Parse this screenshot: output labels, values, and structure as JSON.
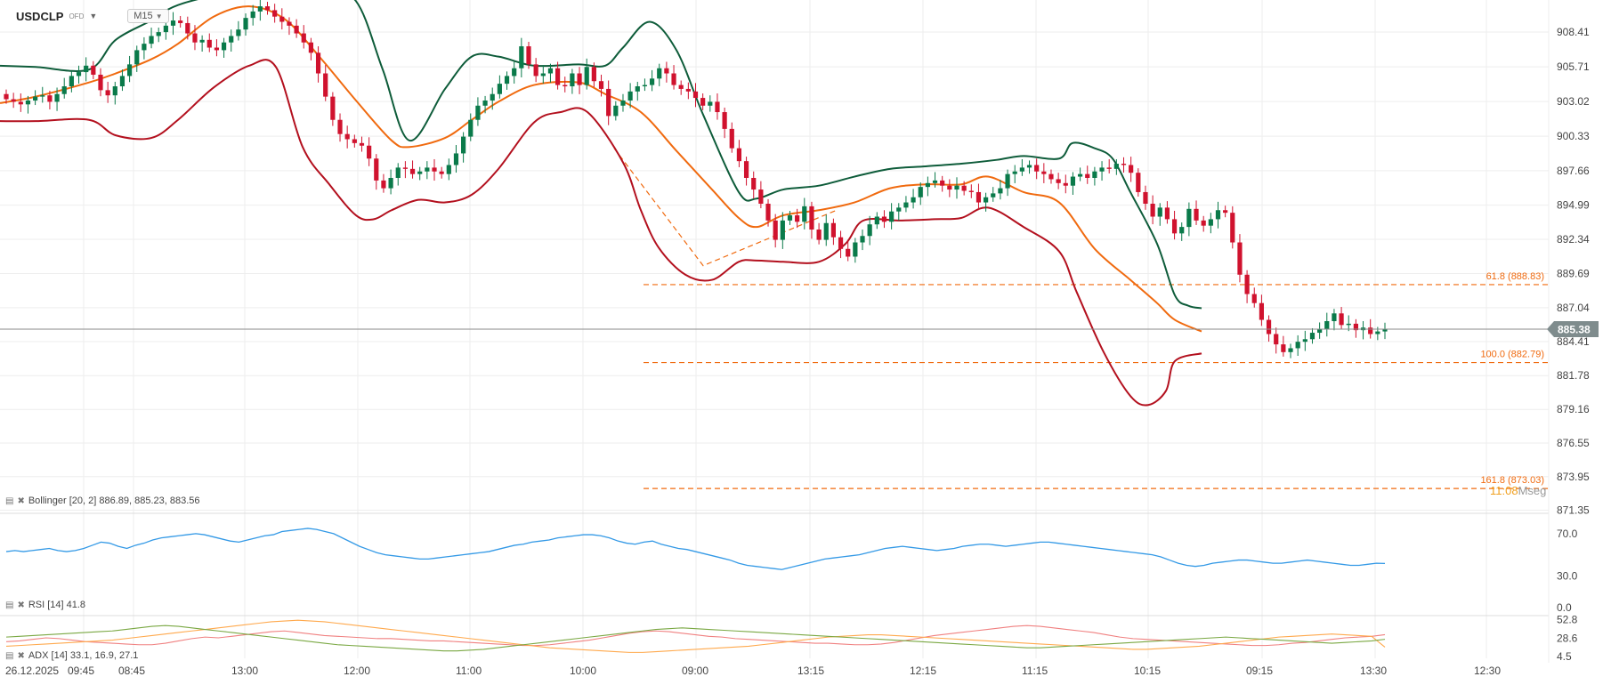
{
  "header": {
    "symbol": "USDCLP",
    "symbol_sub": "OFD",
    "timeframe": "M15"
  },
  "legends": {
    "bollinger": "Bollinger  [20, 2]  886.89,  885.23,  883.56",
    "rsi": "RSI [14]  41.8",
    "adx": "ADX [14]  33.1,  16.9,  27.1"
  },
  "countdown": {
    "time": "11:08",
    "unit_prefix": "M",
    "unit_suffix": "seg"
  },
  "colors": {
    "up": "#0a7a4a",
    "down": "#d0122e",
    "upper_band": "#0e5c3a",
    "middle_band": "#f06a0f",
    "lower_band": "#b3101e",
    "fib": "#f06a0f",
    "rsi": "#3399e6",
    "adx": "#f08080",
    "di_plus": "#ffa94d",
    "di_minus": "#7aa843",
    "last_price_tag": "#7f8c8d"
  },
  "chart_data": [
    {
      "type": "candlestick",
      "title": "USDCLP M15",
      "ylim": [
        870.9,
        910.2
      ],
      "y_ticks": [
        908.41,
        905.71,
        903.02,
        900.33,
        897.66,
        894.99,
        892.34,
        889.69,
        887.04,
        884.41,
        881.78,
        879.16,
        876.55,
        873.95,
        871.35
      ],
      "y_tick_labels": [
        "908.41",
        "905.71",
        "903.02",
        "900.33",
        "897.66",
        "894.99",
        "892.34",
        "889.69",
        "887.04",
        "884.41",
        "881.78",
        "879.16",
        "876.55",
        "873.95",
        "871.35"
      ],
      "x_tick_labels": [
        "26.12.2025",
        "09:45",
        "08:45",
        "13:00",
        "12:00",
        "11:00",
        "10:00",
        "09:00",
        "13:15",
        "12:15",
        "11:15",
        "10:15",
        "09:15",
        "13:30",
        "12:30"
      ],
      "last_price": 885.38,
      "last_price_label": "885.38",
      "closes": [
        903.2,
        903.0,
        902.8,
        903.1,
        903.4,
        903.5,
        903.0,
        903.6,
        904.2,
        905.0,
        905.3,
        905.8,
        905.1,
        903.9,
        903.5,
        904.2,
        905.0,
        905.9,
        907.0,
        907.5,
        908.1,
        908.4,
        908.9,
        909.3,
        909.1,
        908.3,
        907.6,
        907.8,
        907.2,
        907.0,
        907.6,
        908.1,
        908.6,
        909.5,
        910.0,
        910.4,
        910.1,
        909.6,
        909.2,
        908.9,
        908.3,
        907.6,
        906.8,
        905.2,
        903.4,
        901.6,
        900.5,
        900.1,
        899.8,
        899.6,
        898.6,
        896.9,
        896.3,
        897.1,
        897.9,
        897.8,
        897.4,
        897.6,
        897.9,
        897.6,
        897.4,
        898.1,
        899.0,
        900.3,
        901.6,
        902.7,
        903.1,
        903.6,
        904.4,
        905.0,
        905.6,
        907.3,
        905.9,
        905.0,
        905.2,
        905.6,
        904.3,
        904.2,
        905.2,
        904.3,
        905.7,
        904.6,
        904.0,
        901.9,
        902.7,
        903.1,
        903.8,
        904.2,
        904.3,
        904.8,
        905.6,
        905.2,
        904.3,
        904.0,
        903.8,
        903.3,
        902.7,
        903.0,
        902.2,
        900.9,
        899.4,
        898.4,
        897.1,
        896.2,
        895.1,
        893.8,
        892.3,
        893.8,
        894.2,
        893.7,
        894.9,
        893.1,
        892.3,
        893.6,
        892.5,
        891.6,
        891.0,
        892.1,
        892.6,
        893.5,
        894.1,
        893.7,
        894.5,
        894.8,
        895.2,
        895.6,
        896.4,
        896.7,
        896.9,
        896.5,
        896.2,
        896.5,
        896.1,
        896.0,
        895.2,
        895.6,
        895.9,
        896.3,
        897.4,
        897.6,
        897.9,
        898.1,
        897.6,
        897.4,
        897.0,
        896.7,
        896.5,
        897.2,
        897.4,
        897.1,
        897.6,
        897.9,
        897.8,
        898.2,
        898.1,
        897.5,
        896.0,
        895.1,
        894.1,
        894.8,
        893.9,
        892.8,
        893.3,
        894.7,
        893.8,
        893.4,
        893.9,
        894.6,
        894.4,
        892.1,
        889.6,
        888.1,
        887.4,
        886.1,
        885.0,
        884.2,
        883.6,
        883.9,
        884.4,
        884.6,
        885.1,
        885.4,
        886.0,
        886.6,
        885.7,
        885.8,
        885.3,
        885.5,
        885.0,
        885.2,
        885.38
      ],
      "upper_band": [
        [
          0,
          905.8
        ],
        [
          40,
          905.7
        ],
        [
          100,
          905.5
        ],
        [
          130,
          907.8
        ],
        [
          170,
          909.3
        ],
        [
          200,
          910.5
        ],
        [
          260,
          911.5
        ],
        [
          320,
          912.0
        ],
        [
          360,
          911.8
        ],
        [
          400,
          910.8
        ],
        [
          430,
          905.5
        ],
        [
          460,
          900.0
        ],
        [
          500,
          904.0
        ],
        [
          530,
          906.5
        ],
        [
          560,
          906.5
        ],
        [
          600,
          905.8
        ],
        [
          650,
          905.9
        ],
        [
          680,
          905.8
        ],
        [
          700,
          907.2
        ],
        [
          730,
          909.2
        ],
        [
          760,
          907.0
        ],
        [
          790,
          902.0
        ],
        [
          830,
          896.0
        ],
        [
          850,
          895.5
        ],
        [
          880,
          896.2
        ],
        [
          920,
          896.5
        ],
        [
          960,
          897.2
        ],
        [
          1000,
          897.8
        ],
        [
          1040,
          898.0
        ],
        [
          1080,
          898.2
        ],
        [
          1120,
          898.5
        ],
        [
          1150,
          898.8
        ],
        [
          1190,
          898.6
        ],
        [
          1205,
          899.8
        ],
        [
          1230,
          899.4
        ],
        [
          1250,
          898.6
        ],
        [
          1270,
          896.0
        ],
        [
          1300,
          892.0
        ],
        [
          1320,
          888.0
        ],
        [
          1335,
          887.2
        ],
        [
          1350,
          887.0
        ]
      ],
      "middle_band": [
        [
          0,
          902.9
        ],
        [
          40,
          903.4
        ],
        [
          100,
          904.5
        ],
        [
          130,
          905.2
        ],
        [
          170,
          906.3
        ],
        [
          200,
          907.5
        ],
        [
          240,
          909.6
        ],
        [
          280,
          910.4
        ],
        [
          320,
          909.4
        ],
        [
          360,
          906.4
        ],
        [
          400,
          903.1
        ],
        [
          440,
          900.0
        ],
        [
          460,
          899.5
        ],
        [
          500,
          900.2
        ],
        [
          530,
          901.6
        ],
        [
          560,
          903.0
        ],
        [
          600,
          904.3
        ],
        [
          650,
          904.5
        ],
        [
          680,
          903.6
        ],
        [
          720,
          902.2
        ],
        [
          760,
          899.2
        ],
        [
          800,
          896.2
        ],
        [
          830,
          894.0
        ],
        [
          850,
          893.3
        ],
        [
          880,
          894.2
        ],
        [
          920,
          894.6
        ],
        [
          960,
          895.2
        ],
        [
          1000,
          896.3
        ],
        [
          1040,
          896.6
        ],
        [
          1080,
          896.6
        ],
        [
          1110,
          897.2
        ],
        [
          1150,
          896.0
        ],
        [
          1190,
          895.2
        ],
        [
          1230,
          891.6
        ],
        [
          1270,
          889.2
        ],
        [
          1300,
          887.4
        ],
        [
          1320,
          886.1
        ],
        [
          1350,
          885.2
        ]
      ],
      "lower_band": [
        [
          0,
          901.5
        ],
        [
          40,
          901.5
        ],
        [
          100,
          901.6
        ],
        [
          130,
          900.4
        ],
        [
          170,
          900.2
        ],
        [
          200,
          901.6
        ],
        [
          240,
          904.1
        ],
        [
          280,
          905.8
        ],
        [
          310,
          905.7
        ],
        [
          340,
          899.5
        ],
        [
          370,
          896.6
        ],
        [
          400,
          894.2
        ],
        [
          420,
          893.9
        ],
        [
          440,
          894.6
        ],
        [
          470,
          895.4
        ],
        [
          500,
          895.2
        ],
        [
          530,
          895.8
        ],
        [
          560,
          897.8
        ],
        [
          600,
          901.4
        ],
        [
          630,
          902.2
        ],
        [
          660,
          902.2
        ],
        [
          700,
          898.3
        ],
        [
          720,
          894.6
        ],
        [
          740,
          891.7
        ],
        [
          770,
          889.6
        ],
        [
          800,
          889.2
        ],
        [
          830,
          890.6
        ],
        [
          850,
          890.7
        ],
        [
          880,
          890.6
        ],
        [
          920,
          890.6
        ],
        [
          950,
          892.0
        ],
        [
          970,
          893.8
        ],
        [
          1010,
          893.8
        ],
        [
          1050,
          893.9
        ],
        [
          1080,
          894.0
        ],
        [
          1110,
          894.8
        ],
        [
          1150,
          893.3
        ],
        [
          1190,
          891.4
        ],
        [
          1210,
          888.2
        ],
        [
          1240,
          883.6
        ],
        [
          1270,
          880.2
        ],
        [
          1290,
          879.5
        ],
        [
          1310,
          880.6
        ],
        [
          1320,
          882.9
        ],
        [
          1350,
          883.5
        ]
      ],
      "fib_levels": [
        {
          "name": "61.8",
          "value": 888.83,
          "label": "61.8 (888.83)"
        },
        {
          "name": "100.0",
          "value": 882.79,
          "label": "100.0 (882.79)"
        },
        {
          "name": "161.8",
          "value": 873.03,
          "label": "161.8 (873.03)"
        }
      ],
      "fib_trendline": [
        [
          690,
          899.4
        ],
        [
          790,
          890.3
        ],
        [
          940,
          894.6
        ]
      ]
    },
    {
      "type": "line",
      "title": "RSI [14]",
      "ylim": [
        0,
        80
      ],
      "y_ticks": [
        0.0,
        30.0,
        70.0
      ],
      "y_tick_labels": [
        "0.0",
        "30.0",
        "70.0"
      ],
      "values": [
        53,
        54,
        53,
        54,
        55,
        56,
        54,
        53,
        54,
        56,
        59,
        62,
        61,
        58,
        56,
        59,
        61,
        64,
        66,
        67,
        68,
        69,
        70,
        69,
        67,
        65,
        63,
        62,
        64,
        66,
        68,
        69,
        72,
        73,
        74,
        75,
        74,
        72,
        70,
        66,
        62,
        58,
        55,
        52,
        50,
        49,
        48,
        47,
        46,
        46,
        47,
        48,
        49,
        50,
        51,
        52,
        53,
        55,
        57,
        59,
        60,
        62,
        63,
        64,
        66,
        67,
        68,
        69,
        69,
        68,
        66,
        63,
        61,
        60,
        62,
        63,
        60,
        58,
        56,
        55,
        53,
        51,
        49,
        47,
        45,
        42,
        40,
        39,
        38,
        37,
        36,
        38,
        40,
        42,
        44,
        46,
        47,
        48,
        49,
        50,
        52,
        54,
        56,
        57,
        58,
        57,
        56,
        55,
        54,
        55,
        56,
        58,
        59,
        60,
        60,
        59,
        58,
        59,
        60,
        61,
        62,
        62,
        61,
        60,
        59,
        58,
        57,
        56,
        55,
        54,
        53,
        52,
        51,
        50,
        48,
        45,
        42,
        40,
        39,
        40,
        42,
        43,
        44,
        45,
        45,
        44,
        43,
        42,
        42,
        43,
        44,
        45,
        44,
        43,
        42,
        41,
        40,
        40,
        41,
        42,
        41.8
      ]
    },
    {
      "type": "line",
      "title": "ADX [14]",
      "ylim": [
        0,
        58
      ],
      "y_ticks": [
        4.5,
        28.6,
        52.8
      ],
      "y_tick_labels": [
        "4.5",
        "28.6",
        "52.8"
      ],
      "series": [
        {
          "name": "ADX",
          "values": [
            24,
            25,
            27,
            29,
            28,
            26,
            24,
            23,
            22,
            21,
            20,
            20,
            22,
            25,
            28,
            30,
            29,
            31,
            33,
            35,
            37,
            38,
            36,
            34,
            32,
            31,
            30,
            29,
            28,
            28,
            27,
            26,
            25,
            25,
            24,
            23,
            22,
            21,
            20,
            19,
            19,
            20,
            22,
            24,
            26,
            29,
            32,
            35,
            37,
            38,
            37,
            35,
            33,
            31,
            30,
            28,
            27,
            26,
            25,
            24,
            23,
            22,
            22,
            21,
            20,
            20,
            21,
            23,
            26,
            29,
            32,
            34,
            36,
            38,
            40,
            42,
            44,
            45,
            44,
            42,
            40,
            38,
            36,
            33,
            30,
            28,
            27,
            26,
            25,
            24,
            23,
            22,
            21,
            20,
            19,
            19,
            20,
            22,
            23,
            25,
            27,
            29,
            30,
            31,
            33.1
          ]
        },
        {
          "name": "+DI",
          "values": [
            18,
            19,
            20,
            21,
            22,
            23,
            24,
            25,
            26,
            28,
            30,
            32,
            34,
            36,
            38,
            40,
            42,
            44,
            46,
            48,
            50,
            51,
            52,
            51,
            50,
            48,
            46,
            44,
            42,
            40,
            38,
            36,
            34,
            32,
            30,
            28,
            26,
            24,
            22,
            20,
            18,
            16,
            15,
            14,
            13,
            12,
            11,
            10,
            10,
            11,
            12,
            13,
            14,
            15,
            16,
            17,
            18,
            20,
            22,
            24,
            26,
            28,
            30,
            31,
            32,
            33,
            33,
            32,
            31,
            30,
            29,
            28,
            27,
            26,
            25,
            24,
            23,
            22,
            21,
            20,
            19,
            18,
            17,
            16,
            15,
            14,
            14,
            15,
            16,
            17,
            18,
            20,
            22,
            24,
            26,
            28,
            30,
            31,
            32,
            33,
            34,
            33,
            32,
            31,
            16.9
          ]
        },
        {
          "name": "-DI",
          "values": [
            30,
            31,
            32,
            33,
            34,
            35,
            36,
            37,
            38,
            40,
            42,
            44,
            45,
            44,
            42,
            40,
            38,
            36,
            34,
            32,
            30,
            28,
            26,
            24,
            22,
            20,
            19,
            18,
            17,
            16,
            15,
            14,
            13,
            12,
            12,
            13,
            14,
            16,
            18,
            20,
            22,
            24,
            26,
            28,
            30,
            32,
            34,
            36,
            38,
            40,
            41,
            42,
            41,
            40,
            39,
            38,
            37,
            36,
            35,
            34,
            33,
            32,
            31,
            30,
            29,
            28,
            27,
            26,
            25,
            24,
            23,
            22,
            21,
            20,
            19,
            18,
            17,
            16,
            16,
            17,
            18,
            19,
            20,
            21,
            22,
            23,
            24,
            25,
            26,
            27,
            28,
            29,
            30,
            29,
            28,
            27,
            26,
            25,
            24,
            23,
            22,
            23,
            24,
            25,
            27.1
          ]
        }
      ]
    }
  ]
}
